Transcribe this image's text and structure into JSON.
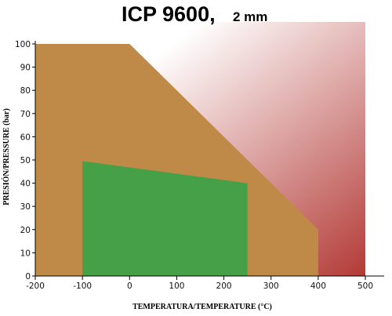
{
  "chart_data": {
    "type": "area",
    "title": "ICP 9600,",
    "subtitle": "2 mm",
    "xlabel": "TEMPERATURA/TEMPERATURE (°C)",
    "ylabel": "PRESIÓN/PRESSURE (bar)",
    "xlim": [
      -200,
      500
    ],
    "ylim": [
      0,
      100
    ],
    "x_ticks": [
      -200,
      -100,
      0,
      100,
      200,
      300,
      400,
      500
    ],
    "y_ticks": [
      0,
      10,
      20,
      30,
      40,
      50,
      60,
      70,
      80,
      90,
      100
    ],
    "grid": false,
    "background_gradient": {
      "from_color": "#ffffff",
      "to_color": "#b33a36"
    },
    "series": [
      {
        "color": "#bf8a48",
        "points": [
          [
            -200,
            0
          ],
          [
            -200,
            100
          ],
          [
            0,
            100
          ],
          [
            400,
            20
          ],
          [
            400,
            0
          ]
        ]
      },
      {
        "color": "#46a048",
        "points": [
          [
            -100,
            0
          ],
          [
            -100,
            49.5
          ],
          [
            250,
            40
          ],
          [
            250,
            0
          ]
        ]
      }
    ]
  }
}
